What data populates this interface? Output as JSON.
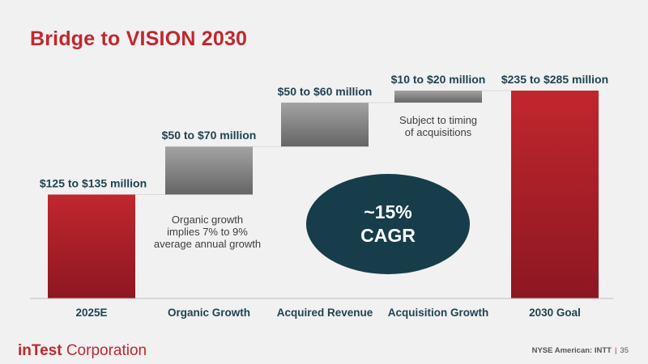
{
  "slide": {
    "title": "Bridge to VISION 2030"
  },
  "colors": {
    "red_top": "#c1272d",
    "red_bottom": "#8d1722",
    "gray_top": "#a3a3a3",
    "gray_bottom": "#656565",
    "navy": "#173d4a",
    "label": "#1f4350"
  },
  "chart_data": {
    "type": "waterfall",
    "title": "Bridge to VISION 2030",
    "units": "$ million",
    "categories": [
      "2025E",
      "Organic Growth",
      "Acquired Revenue",
      "Acquisition Growth",
      "2030 Goal"
    ],
    "bars": [
      {
        "category": "2025E",
        "kind": "total",
        "base": 0,
        "value": 130,
        "label": "$125 to $135 million",
        "range": [
          125,
          135
        ]
      },
      {
        "category": "Organic Growth",
        "kind": "increment",
        "base": 130,
        "value": 60,
        "label": "$50 to $70 million",
        "range": [
          50,
          70
        ]
      },
      {
        "category": "Acquired Revenue",
        "kind": "increment",
        "base": 190,
        "value": 55,
        "label": "$50 to $60 million",
        "range": [
          50,
          60
        ]
      },
      {
        "category": "Acquisition Growth",
        "kind": "increment",
        "base": 245,
        "value": 15,
        "label": "$10 to $20 million",
        "range": [
          10,
          20
        ]
      },
      {
        "category": "2030 Goal",
        "kind": "total",
        "base": 0,
        "value": 260,
        "label": "$235 to $285 million",
        "range": [
          235,
          285
        ]
      }
    ],
    "annotations": [
      {
        "category": "Organic Growth",
        "lines": [
          "Organic growth",
          "implies 7% to 9%",
          "average annual growth"
        ]
      },
      {
        "category": "Acquisition Growth",
        "lines": [
          "Subject to timing",
          "of acquisitions"
        ]
      }
    ],
    "callout": {
      "lines": [
        "~15%",
        "CAGR"
      ]
    },
    "ylim": [
      0,
      260
    ]
  },
  "footer": {
    "brand": "inTest",
    "corporation": "Corporation",
    "exchange": "NYSE American: INTT",
    "separator": "|",
    "page_number": "35"
  }
}
